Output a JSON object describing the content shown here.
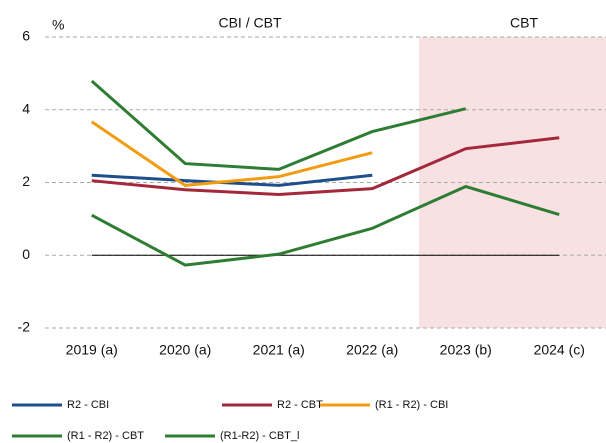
{
  "chart_data": {
    "type": "line",
    "y_label": "%",
    "annotations": [
      "CBI / CBT",
      "CBT"
    ],
    "categories": [
      "2019 (a)",
      "2020 (a)",
      "2021 (a)",
      "2022 (a)",
      "2023 (b)",
      "2024 (c)"
    ],
    "series": [
      {
        "name": "R2 - CBI",
        "color": "#1f4e8c",
        "values": [
          2.2,
          2.05,
          1.92,
          2.2,
          null,
          null
        ]
      },
      {
        "name": "R2 - CBT",
        "color": "#a3283c",
        "values": [
          2.05,
          1.8,
          1.67,
          1.83,
          2.93,
          3.23
        ]
      },
      {
        "name": "(R1 - R2) - CBI",
        "color": "#f39c12",
        "values": [
          3.67,
          1.92,
          2.16,
          2.82,
          null,
          null
        ]
      },
      {
        "name": "(R1 - R2) - CBT",
        "color": "#2e7d32",
        "values": [
          4.79,
          2.52,
          2.36,
          3.4,
          4.03,
          null
        ]
      },
      {
        "name": "(R1-R2) - CBT_l",
        "color": "#2e7d32",
        "values": [
          1.1,
          -0.27,
          0.03,
          0.74,
          1.89,
          1.12
        ]
      }
    ],
    "ylim": [
      -2,
      6
    ],
    "yticks": [
      -2,
      0,
      2,
      4,
      6
    ],
    "grid": true
  }
}
